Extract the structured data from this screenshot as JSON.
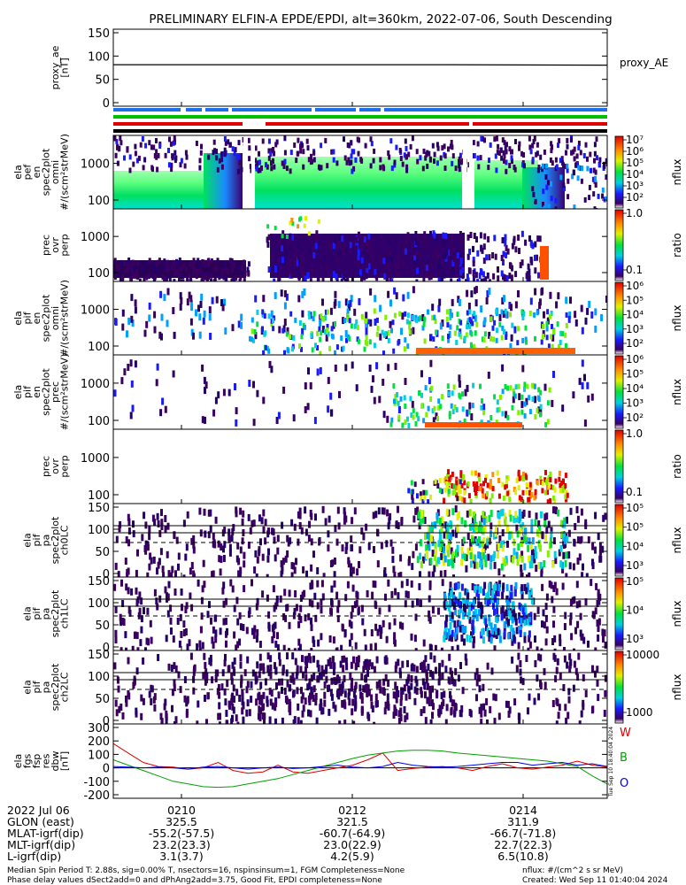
{
  "title": "PRELIMINARY ELFIN-A EPDE/EPDI, alt=360km, 2022-07-06, South Descending",
  "colors": {
    "blue": "#1e6fe8",
    "green": "#00c000",
    "red": "#e00000",
    "black": "#000000"
  },
  "chart_data": [
    {
      "type": "line",
      "ylabel": "proxy_ae\n[nT]",
      "ylim": [
        0,
        150
      ],
      "yticks": [
        "150",
        "100",
        "50",
        "0"
      ],
      "legend": "proxy_AE",
      "series": [
        {
          "name": "proxy_AE",
          "values": [
            82,
            82,
            82,
            81
          ]
        }
      ]
    },
    {
      "type": "heatmap",
      "ylabel": "ela\npef\nen\nspec2plot\nomni\n#/(scm²strMeV)",
      "yticks": [
        "1000",
        "100"
      ],
      "colorbar": {
        "label": "nflux",
        "ticks": [
          "10⁷",
          "10⁶",
          "10⁵",
          "10⁴",
          "10³",
          "10²"
        ]
      }
    },
    {
      "type": "heatmap",
      "ylabel": "prec\novr\nperp",
      "yticks": [
        "1000",
        "100"
      ],
      "colorbar": {
        "label": "ratio",
        "ticks": [
          "1.0",
          "0.1"
        ]
      }
    },
    {
      "type": "heatmap",
      "ylabel": "ela\npif\nen\nspec2plot\nomni\n#/(scm²strMeV)",
      "yticks": [
        "1000",
        "100"
      ],
      "colorbar": {
        "label": "nflux",
        "ticks": [
          "10⁶",
          "10⁵",
          "10⁴",
          "10³",
          "10²"
        ]
      }
    },
    {
      "type": "heatmap",
      "ylabel": "ela\npif\nen\nspec2plot\nprec\n#/(scm²strMeV)",
      "yticks": [
        "1000",
        "100"
      ],
      "colorbar": {
        "label": "nflux",
        "ticks": [
          "10⁶",
          "10⁵",
          "10⁴",
          "10³",
          "10²"
        ]
      }
    },
    {
      "type": "heatmap",
      "ylabel": "prec\novr\nperp",
      "yticks": [
        "1000",
        "100"
      ],
      "colorbar": {
        "label": "ratio",
        "ticks": [
          "1.0",
          "0.1"
        ]
      }
    },
    {
      "type": "heatmap",
      "ylabel": "ela\npif\npa\nspec2plot\nch0LC",
      "yticks": [
        "150",
        "100",
        "50",
        "0"
      ],
      "colorbar": {
        "label": "nflux",
        "ticks": [
          "10⁵",
          "10⁵",
          "10⁴",
          "10³"
        ]
      }
    },
    {
      "type": "heatmap",
      "ylabel": "ela\npif\npa\nspec2plot\nch1LC",
      "yticks": [
        "150",
        "100",
        "50",
        "0"
      ],
      "colorbar": {
        "label": "nflux",
        "ticks": [
          "10⁵",
          "10⁴",
          "10³"
        ]
      }
    },
    {
      "type": "heatmap",
      "ylabel": "ela\npif\npa\nspec2plot\nch2LC",
      "yticks": [
        "150",
        "100",
        "50",
        "0"
      ],
      "colorbar": {
        "label": "nflux",
        "ticks": [
          "10000",
          "1000"
        ]
      }
    },
    {
      "type": "line",
      "ylabel": "ela\nfgs\nfsp\nres\ndbw\n[nT]",
      "ylim": [
        -200,
        300
      ],
      "yticks": [
        "300",
        "200",
        "100",
        "0",
        "-100",
        "-200"
      ],
      "legend": [
        "W",
        "B",
        "O"
      ],
      "series": [
        {
          "name": "W",
          "color": "#e00000",
          "values": [
            180,
            110,
            40,
            10,
            5,
            -10,
            0,
            40,
            -20,
            -40,
            -30,
            20,
            -30,
            -40,
            -20,
            0,
            20,
            60,
            110,
            -20,
            -5,
            5,
            10,
            0,
            -20,
            10,
            30,
            0,
            -10,
            5,
            20,
            50,
            20,
            5
          ]
        },
        {
          "name": "B",
          "color": "#00a000",
          "values": [
            60,
            20,
            -20,
            -60,
            -100,
            -120,
            -140,
            -145,
            -140,
            -120,
            -100,
            -80,
            -50,
            -20,
            10,
            40,
            70,
            95,
            110,
            125,
            130,
            130,
            125,
            110,
            100,
            90,
            80,
            70,
            60,
            50,
            30,
            10,
            -60,
            -120
          ]
        },
        {
          "name": "O",
          "color": "#0000e0",
          "values": [
            10,
            5,
            0,
            5,
            0,
            -10,
            5,
            10,
            0,
            -10,
            0,
            5,
            -5,
            0,
            10,
            20,
            5,
            0,
            10,
            40,
            20,
            10,
            5,
            10,
            20,
            30,
            40,
            40,
            20,
            30,
            40,
            20,
            30,
            10
          ]
        }
      ]
    }
  ],
  "footer": {
    "rows": [
      {
        "label": "2022 Jul 06",
        "v1": "0210",
        "v2": "0212",
        "v3": "0214"
      },
      {
        "label": "GLON (east)",
        "v1": "325.5",
        "v2": "321.5",
        "v3": "311.9"
      },
      {
        "label": "MLAT-igrf(dip)",
        "v1": "-55.2(-57.5)",
        "v2": "-60.7(-64.9)",
        "v3": "-66.7(-71.8)"
      },
      {
        "label": "MLT-igrf(dip)",
        "v1": "23.2(23.3)",
        "v2": "23.0(22.9)",
        "v3": "22.7(22.3)"
      },
      {
        "label": "L-igrf(dip)",
        "v1": "3.1(3.7)",
        "v2": "4.2(5.9)",
        "v3": "6.5(10.8)"
      }
    ],
    "note1": "Median Spin Period T: 2.88s, sig=0.00% T, nsectors=16, nspinsinsum=1, FGM Completeness=None",
    "note2": "Phase delay values dSect2add=0 and dPhAng2add=3.75, Good Fit, EPDI completeness=None",
    "nflux_units": "nflux: #/(cm^2 s sr MeV)",
    "created": "Created: Wed Sep 11 01:40:04 2024",
    "side_stamp": "Tue Sep 10 18:40:04 2024"
  }
}
